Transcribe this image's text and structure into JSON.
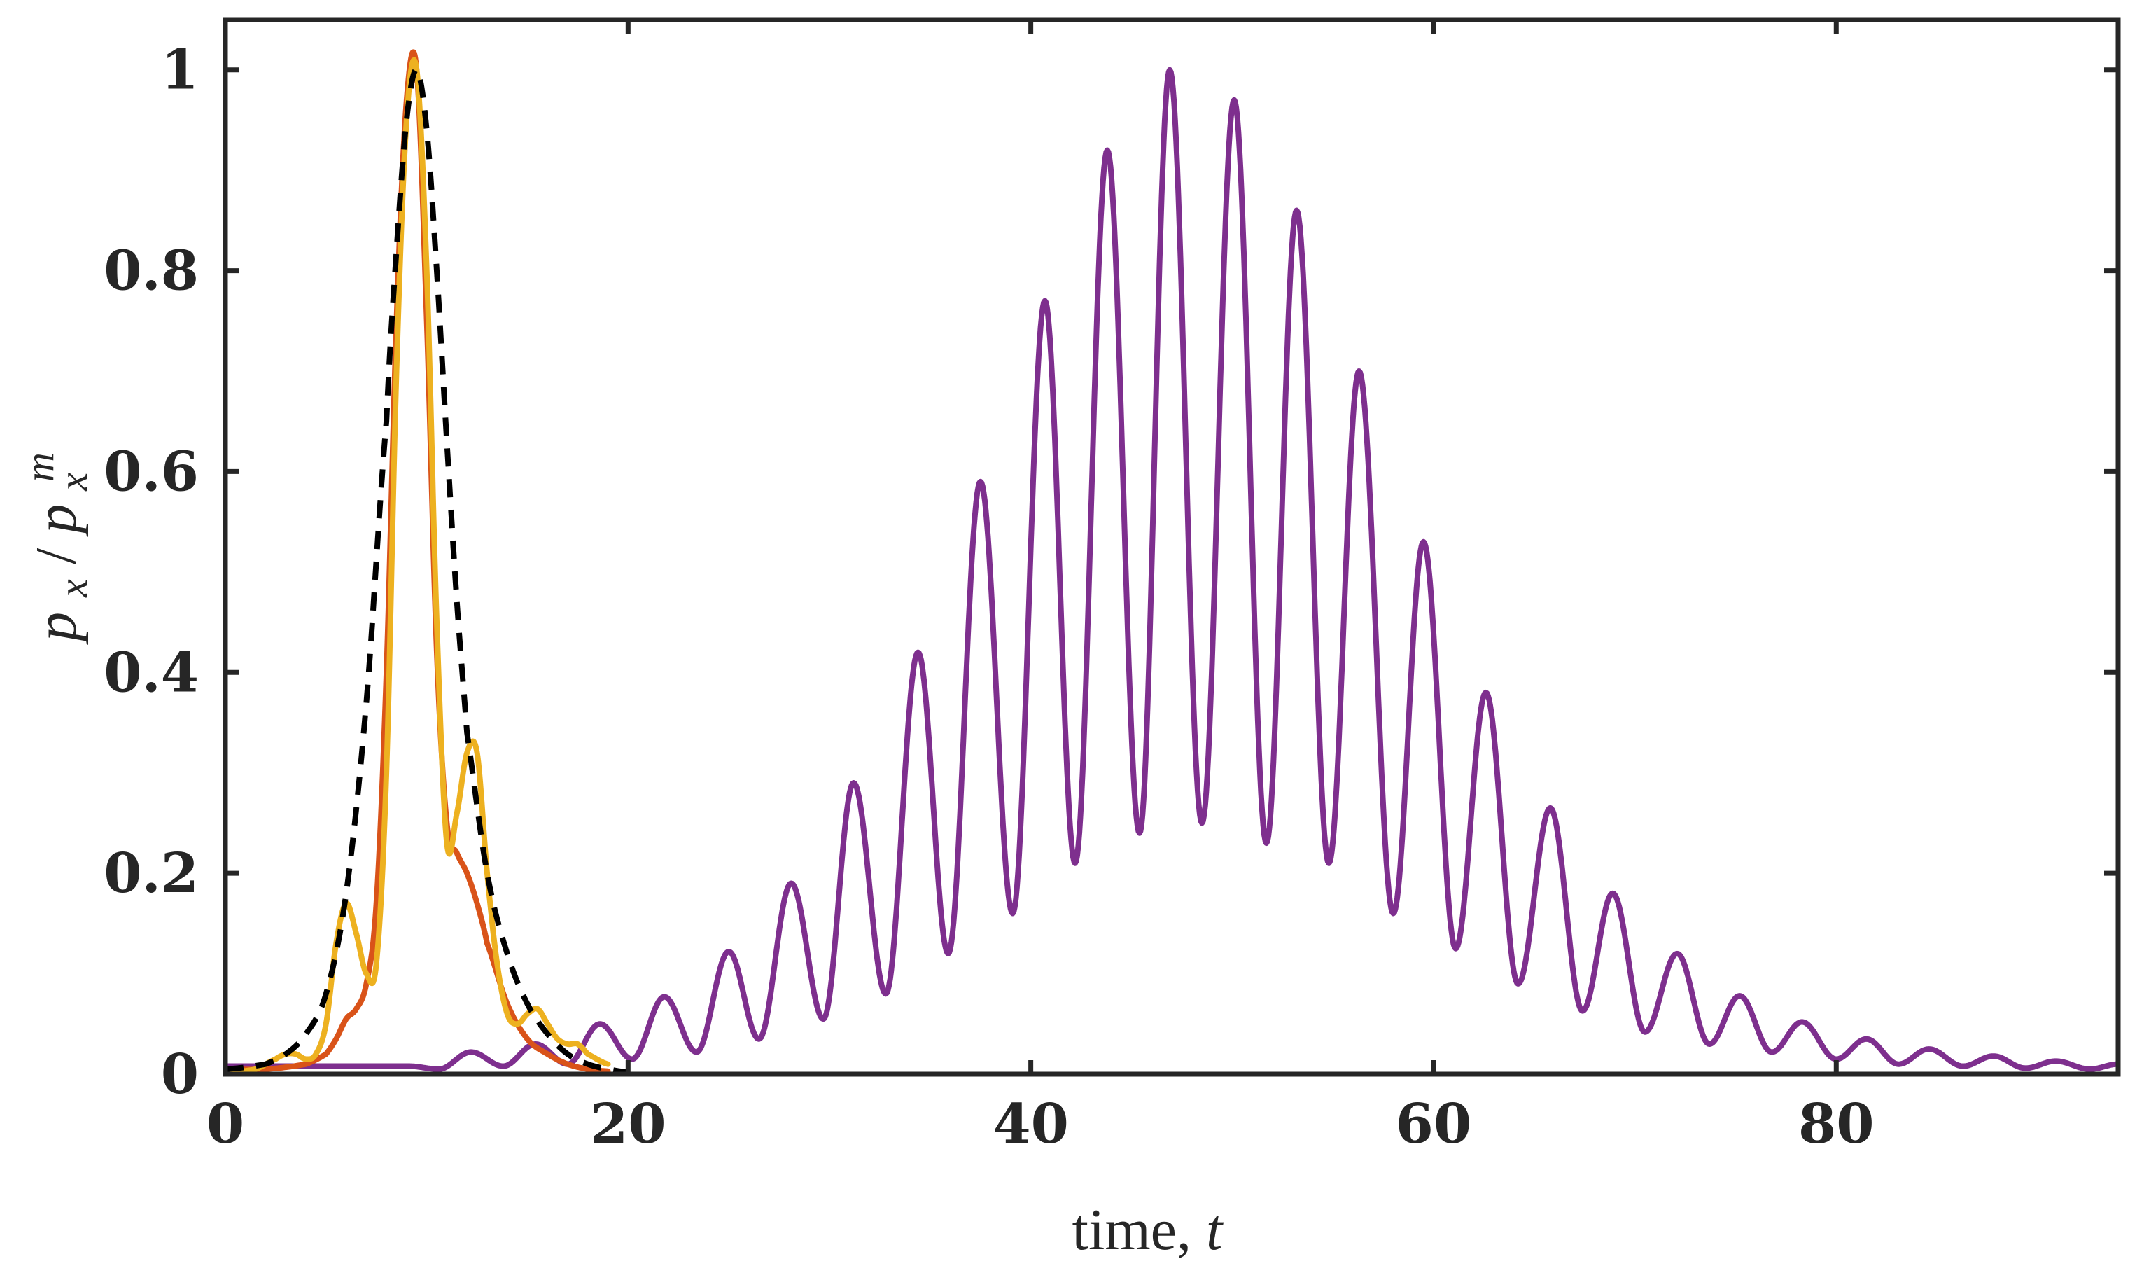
{
  "chart_data": {
    "type": "line",
    "title": "",
    "xlabel": "time,",
    "xlabel_var": "t",
    "ylabel": "p_x / p_x^m",
    "ylabel_parts": {
      "base": "p",
      "sub": "x",
      "slash": "/",
      "sup": "m"
    },
    "xlim": [
      0,
      94
    ],
    "ylim": [
      0,
      1.05
    ],
    "xticks": [
      0,
      20,
      40,
      60,
      80
    ],
    "xtick_labels": [
      "0",
      "20",
      "40",
      "60",
      "80"
    ],
    "yticks": [
      0,
      0.2,
      0.4,
      0.6,
      0.8,
      1
    ],
    "ytick_labels": [
      "0",
      "0.2",
      "0.4",
      "0.6",
      "0.8",
      "1"
    ],
    "grid": false,
    "legend": "none",
    "series": [
      {
        "name": "dashed-envelope",
        "color": "#000000",
        "style": "dashed",
        "x": [
          0,
          2,
          3,
          4,
          5,
          6,
          7,
          8,
          8.5,
          9,
          9.5,
          10,
          10.5,
          11,
          11.5,
          12,
          13,
          14,
          15,
          16,
          17,
          18,
          19,
          20
        ],
        "y": [
          0.005,
          0.01,
          0.02,
          0.04,
          0.08,
          0.18,
          0.37,
          0.65,
          0.82,
          0.95,
          1.0,
          0.94,
          0.8,
          0.63,
          0.47,
          0.34,
          0.2,
          0.12,
          0.07,
          0.04,
          0.02,
          0.01,
          0.005,
          0.002
        ]
      },
      {
        "name": "orange",
        "color": "#D95319",
        "style": "solid",
        "x": [
          0,
          2,
          4,
          5,
          5.5,
          6,
          6.5,
          7,
          7.5,
          8,
          8.5,
          9,
          9.5,
          10,
          10.5,
          11,
          11.5,
          12,
          12.5,
          13,
          14,
          15,
          16,
          17,
          18,
          19
        ],
        "y": [
          0.005,
          0.005,
          0.01,
          0.02,
          0.035,
          0.055,
          0.065,
          0.09,
          0.17,
          0.4,
          0.75,
          0.97,
          1.0,
          0.75,
          0.42,
          0.25,
          0.22,
          0.2,
          0.17,
          0.13,
          0.07,
          0.035,
          0.02,
          0.01,
          0.005,
          0.003
        ]
      },
      {
        "name": "yellow",
        "color": "#EDB120",
        "style": "solid",
        "x": [
          0,
          1.5,
          2.5,
          3,
          3.5,
          4,
          4.5,
          5,
          5.5,
          6,
          6.5,
          7,
          7.5,
          8,
          8.5,
          9,
          9.5,
          10,
          10.5,
          11,
          11.5,
          12,
          12.5,
          13,
          13.5,
          14,
          14.5,
          15,
          15.5,
          16,
          16.5,
          17,
          17.5,
          18,
          19
        ],
        "y": [
          0.002,
          0.005,
          0.015,
          0.02,
          0.02,
          0.015,
          0.02,
          0.05,
          0.13,
          0.17,
          0.14,
          0.1,
          0.11,
          0.3,
          0.7,
          0.95,
          1.0,
          0.8,
          0.45,
          0.23,
          0.26,
          0.32,
          0.32,
          0.2,
          0.11,
          0.06,
          0.05,
          0.06,
          0.065,
          0.05,
          0.035,
          0.03,
          0.03,
          0.02,
          0.01
        ]
      },
      {
        "name": "purple",
        "color": "#7E2F8E",
        "style": "solid",
        "t0": 0,
        "t1": 94,
        "period": 3.15,
        "phase_peak": 46.9,
        "envelope_center": 46.9,
        "peaks": [
          {
            "t": 9.1,
            "y": 0.008
          },
          {
            "t": 12.2,
            "y": 0.022
          },
          {
            "t": 15.4,
            "y": 0.03
          },
          {
            "t": 18.6,
            "y": 0.05
          },
          {
            "t": 21.8,
            "y": 0.077
          },
          {
            "t": 25.0,
            "y": 0.122
          },
          {
            "t": 28.1,
            "y": 0.19
          },
          {
            "t": 31.2,
            "y": 0.29
          },
          {
            "t": 34.4,
            "y": 0.42
          },
          {
            "t": 37.5,
            "y": 0.59
          },
          {
            "t": 40.7,
            "y": 0.77
          },
          {
            "t": 43.8,
            "y": 0.92
          },
          {
            "t": 46.9,
            "y": 1.0
          },
          {
            "t": 50.1,
            "y": 0.97
          },
          {
            "t": 53.2,
            "y": 0.86
          },
          {
            "t": 56.3,
            "y": 0.7
          },
          {
            "t": 59.5,
            "y": 0.53
          },
          {
            "t": 62.6,
            "y": 0.38
          },
          {
            "t": 65.8,
            "y": 0.265
          },
          {
            "t": 68.9,
            "y": 0.18
          },
          {
            "t": 72.1,
            "y": 0.12
          },
          {
            "t": 75.2,
            "y": 0.078
          },
          {
            "t": 78.3,
            "y": 0.052
          },
          {
            "t": 81.5,
            "y": 0.035
          },
          {
            "t": 84.6,
            "y": 0.025
          },
          {
            "t": 87.8,
            "y": 0.018
          },
          {
            "t": 90.9,
            "y": 0.013
          }
        ],
        "troughs": [
          {
            "t": 0,
            "y": 0.008
          },
          {
            "t": 10.6,
            "y": 0.005
          },
          {
            "t": 13.8,
            "y": 0.008
          },
          {
            "t": 17.0,
            "y": 0.01
          },
          {
            "t": 20.2,
            "y": 0.015
          },
          {
            "t": 23.4,
            "y": 0.022
          },
          {
            "t": 26.5,
            "y": 0.035
          },
          {
            "t": 29.7,
            "y": 0.055
          },
          {
            "t": 32.8,
            "y": 0.08
          },
          {
            "t": 35.9,
            "y": 0.12
          },
          {
            "t": 39.1,
            "y": 0.16
          },
          {
            "t": 42.2,
            "y": 0.21
          },
          {
            "t": 45.4,
            "y": 0.24
          },
          {
            "t": 48.5,
            "y": 0.25
          },
          {
            "t": 51.7,
            "y": 0.23
          },
          {
            "t": 54.8,
            "y": 0.21
          },
          {
            "t": 58.0,
            "y": 0.16
          },
          {
            "t": 61.1,
            "y": 0.125
          },
          {
            "t": 64.2,
            "y": 0.09
          },
          {
            "t": 67.4,
            "y": 0.063
          },
          {
            "t": 70.5,
            "y": 0.042
          },
          {
            "t": 73.7,
            "y": 0.03
          },
          {
            "t": 76.8,
            "y": 0.022
          },
          {
            "t": 80.0,
            "y": 0.015
          },
          {
            "t": 83.1,
            "y": 0.01
          },
          {
            "t": 86.3,
            "y": 0.008
          },
          {
            "t": 89.4,
            "y": 0.006
          },
          {
            "t": 92.6,
            "y": 0.005
          },
          {
            "t": 94,
            "y": 0.01
          }
        ]
      }
    ]
  }
}
